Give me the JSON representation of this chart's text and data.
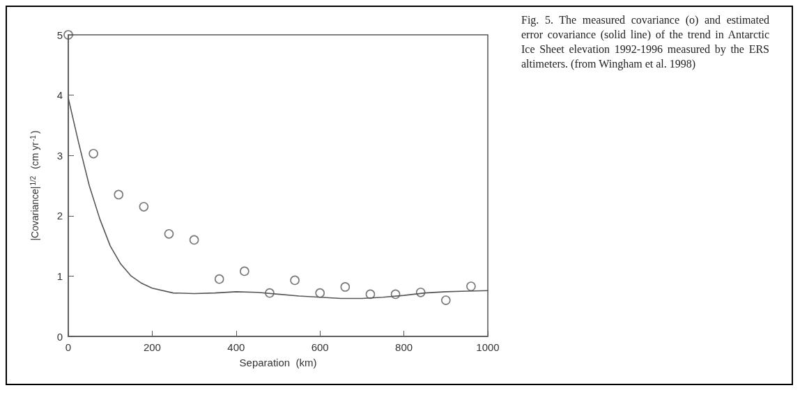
{
  "chart_data": {
    "type": "scatter",
    "xlabel": "Separation  (km)",
    "ylabel": "|Covariance|$^{1/2}$  (cm yr$^{-1}$)",
    "xlim": [
      0,
      1000
    ],
    "xticks": [
      0,
      200,
      400,
      600,
      800,
      1000
    ],
    "ylim": [
      0,
      5
    ],
    "yticks": [
      0,
      1,
      2,
      3,
      4,
      5
    ],
    "grid": false,
    "series": [
      {
        "marker": "circle",
        "color": "#555555",
        "x": [
          0,
          60,
          120,
          180,
          240,
          300,
          360,
          420,
          480,
          540,
          600,
          660,
          720,
          780,
          840,
          900,
          960
        ],
        "values": [
          5.0,
          3.03,
          2.35,
          2.15,
          1.7,
          1.6,
          0.95,
          1.08,
          0.72,
          0.93,
          0.72,
          0.82,
          0.7,
          0.7,
          0.73,
          0.6,
          0.83
        ]
      },
      {
        "type": "line",
        "marker": "none",
        "line_style": "solid",
        "color": "#555555",
        "x": [
          0,
          25,
          50,
          75,
          100,
          125,
          150,
          175,
          200,
          250,
          300,
          350,
          400,
          450,
          500,
          550,
          600,
          650,
          700,
          750,
          800,
          850,
          900,
          950,
          1000
        ],
        "values": [
          3.95,
          3.2,
          2.5,
          1.95,
          1.5,
          1.2,
          1.0,
          0.88,
          0.8,
          0.72,
          0.71,
          0.72,
          0.74,
          0.73,
          0.7,
          0.67,
          0.65,
          0.63,
          0.63,
          0.65,
          0.68,
          0.72,
          0.74,
          0.75,
          0.76
        ]
      }
    ],
    "annotations": [
      "Fig. 5. The measured covariance (o) and estimated error covariance (solid line) of the trend in Antarctic Ice Sheet elevation 1992-1996 measured by the ERS altimeters. (from Wingham et al. 1998)"
    ]
  }
}
